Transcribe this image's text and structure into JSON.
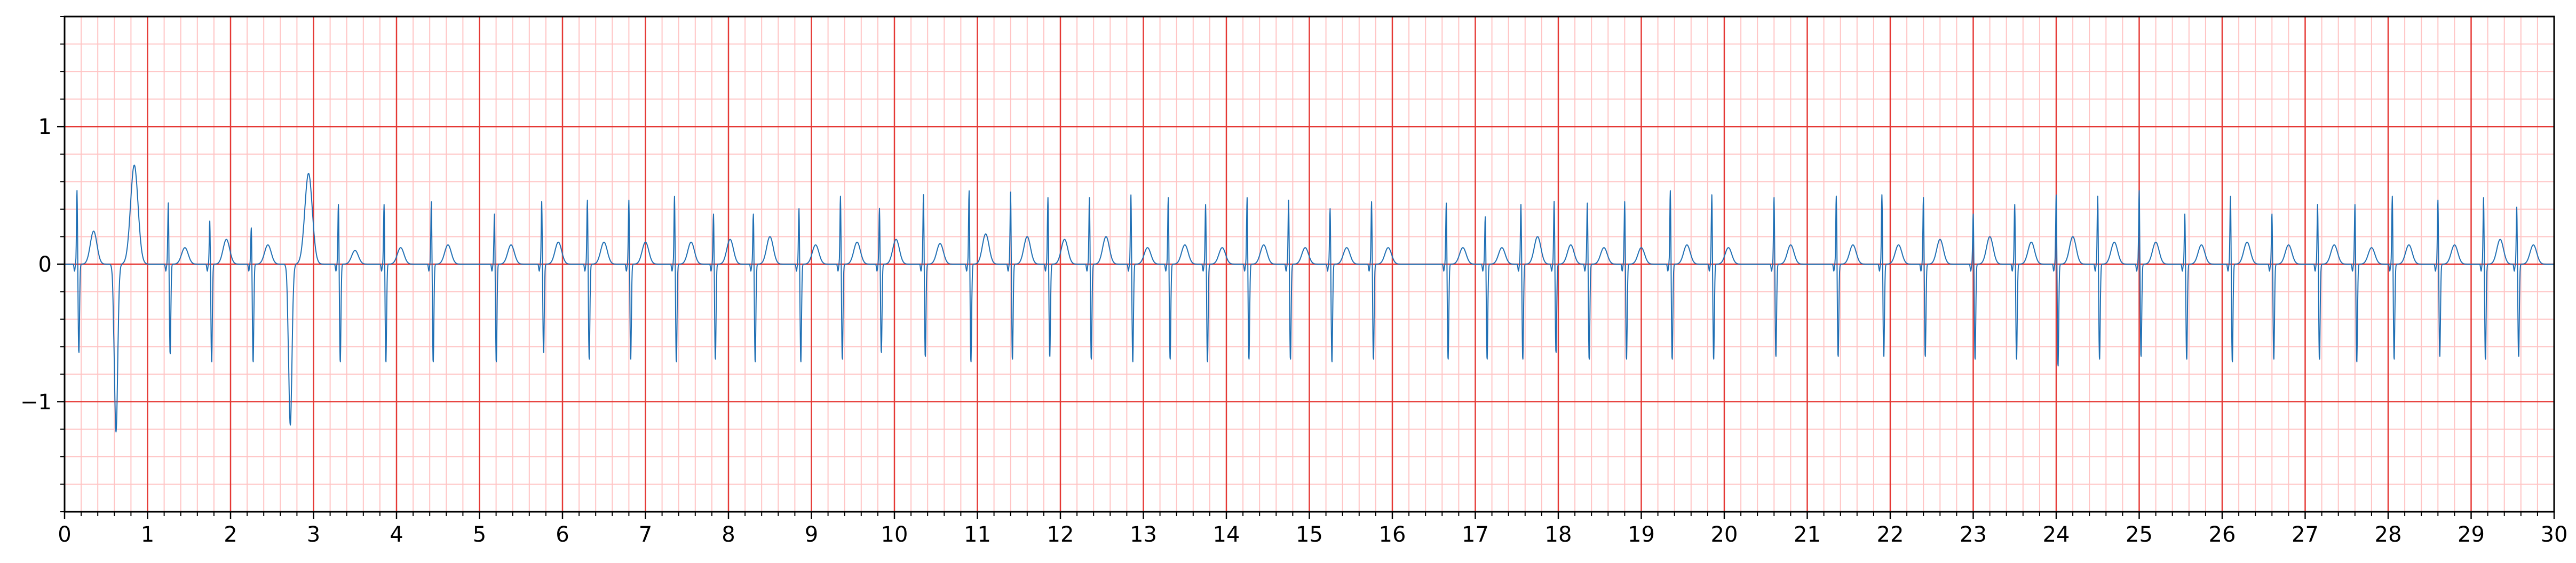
{
  "chart_data": {
    "type": "line",
    "title": "",
    "xlabel": "",
    "ylabel": "",
    "xlim": [
      0,
      30
    ],
    "ylim": [
      -1.8,
      1.8
    ],
    "x_ticks": [
      0,
      1,
      2,
      3,
      4,
      5,
      6,
      7,
      8,
      9,
      10,
      11,
      12,
      13,
      14,
      15,
      16,
      17,
      18,
      19,
      20,
      21,
      22,
      23,
      24,
      25,
      26,
      27,
      28,
      29,
      30
    ],
    "x_tick_labels": [
      "0",
      "1",
      "2",
      "3",
      "4",
      "5",
      "6",
      "7",
      "8",
      "9",
      "10",
      "11",
      "12",
      "13",
      "14",
      "15",
      "16",
      "17",
      "18",
      "19",
      "20",
      "21",
      "22",
      "23",
      "24",
      "25",
      "26",
      "27",
      "28",
      "29",
      "30"
    ],
    "y_ticks": [
      -1,
      0,
      1
    ],
    "y_tick_labels": [
      "−1",
      "0",
      "1"
    ],
    "x_minor_step": 0.2,
    "y_minor_step": 0.2,
    "grid": true,
    "grid_major_color": "#e53935",
    "grid_minor_color": "#ffc4c4",
    "line_color": "#1f6fb4",
    "series": [
      {
        "name": "",
        "beat_times": [
          0.15,
          0.62,
          1.25,
          1.75,
          2.25,
          2.72,
          3.3,
          3.85,
          4.42,
          5.18,
          5.75,
          6.3,
          6.8,
          7.35,
          7.82,
          8.3,
          8.85,
          9.35,
          9.82,
          10.35,
          10.9,
          11.4,
          11.85,
          12.35,
          12.85,
          13.3,
          13.75,
          14.25,
          14.75,
          15.25,
          15.75,
          16.65,
          17.12,
          17.55,
          17.95,
          18.35,
          18.8,
          19.35,
          19.85,
          20.6,
          21.35,
          21.9,
          22.4,
          23.0,
          23.5,
          24.0,
          24.5,
          25.0,
          25.55,
          26.1,
          26.6,
          27.15,
          27.6,
          28.05,
          28.6,
          29.15,
          29.55
        ],
        "r_peaks": [
          0.55,
          0.0,
          0.46,
          0.33,
          0.28,
          0.0,
          0.45,
          0.45,
          0.47,
          0.38,
          0.47,
          0.48,
          0.48,
          0.51,
          0.38,
          0.38,
          0.42,
          0.51,
          0.42,
          0.52,
          0.55,
          0.54,
          0.5,
          0.5,
          0.52,
          0.5,
          0.45,
          0.5,
          0.48,
          0.42,
          0.47,
          0.46,
          0.36,
          0.45,
          0.47,
          0.46,
          0.47,
          0.55,
          0.52,
          0.5,
          0.51,
          0.52,
          0.5,
          0.38,
          0.45,
          0.52,
          0.51,
          0.55,
          0.38,
          0.51,
          0.38,
          0.45,
          0.45,
          0.51,
          0.48,
          0.5,
          0.43
        ],
        "s_troughs": [
          -0.65,
          -1.22,
          -0.66,
          -0.72,
          -0.72,
          -1.17,
          -0.72,
          -0.72,
          -0.72,
          -0.72,
          -0.65,
          -0.7,
          -0.7,
          -0.72,
          -0.7,
          -0.72,
          -0.72,
          -0.7,
          -0.65,
          -0.68,
          -0.72,
          -0.7,
          -0.68,
          -0.7,
          -0.72,
          -0.7,
          -0.72,
          -0.7,
          -0.7,
          -0.72,
          -0.7,
          -0.7,
          -0.7,
          -0.7,
          -0.65,
          -0.7,
          -0.7,
          -0.7,
          -0.7,
          -0.68,
          -0.68,
          -0.68,
          -0.68,
          -0.7,
          -0.7,
          -0.75,
          -0.7,
          -0.68,
          -0.7,
          -0.72,
          -0.7,
          -0.7,
          -0.72,
          -0.7,
          -0.68,
          -0.7,
          -0.68
        ],
        "t_peaks": [
          0.24,
          0.72,
          0.12,
          0.18,
          0.14,
          0.66,
          0.1,
          0.12,
          0.14,
          0.14,
          0.16,
          0.16,
          0.16,
          0.16,
          0.18,
          0.2,
          0.14,
          0.16,
          0.18,
          0.15,
          0.22,
          0.2,
          0.18,
          0.2,
          0.12,
          0.14,
          0.12,
          0.14,
          0.12,
          0.12,
          0.12,
          0.12,
          0.12,
          0.2,
          0.14,
          0.12,
          0.12,
          0.14,
          0.12,
          0.14,
          0.14,
          0.14,
          0.18,
          0.2,
          0.16,
          0.2,
          0.16,
          0.16,
          0.14,
          0.16,
          0.14,
          0.14,
          0.12,
          0.14,
          0.14,
          0.18,
          0.14
        ]
      }
    ]
  }
}
